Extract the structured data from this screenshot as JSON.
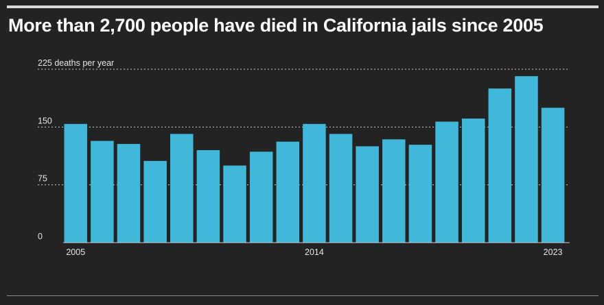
{
  "title": "More than 2,700 people have died in California jails since 2005",
  "colors": {
    "background": "#232323",
    "bar": "#41b8d9",
    "gridline": "#cfcfcf",
    "text": "#ffffff"
  },
  "chart_data": {
    "type": "bar",
    "title": "More than 2,700 people have died in California jails since 2005",
    "xlabel": "",
    "ylabel": "",
    "unit_label": "225 deaths per year",
    "categories": [
      "2005",
      "2006",
      "2007",
      "2008",
      "2009",
      "2010",
      "2011",
      "2012",
      "2013",
      "2014",
      "2015",
      "2016",
      "2017",
      "2018",
      "2019",
      "2020",
      "2021",
      "2022",
      "2023"
    ],
    "values": [
      154,
      132,
      128,
      106,
      141,
      120,
      100,
      118,
      131,
      154,
      141,
      125,
      134,
      127,
      157,
      161,
      200,
      216,
      175
    ],
    "ylim": [
      0,
      225
    ],
    "yticks": [
      0,
      75,
      150,
      225
    ],
    "ytick_labels": [
      "0",
      "75",
      "150",
      "225 deaths per year"
    ],
    "xtick_labels": [
      "2005",
      "2014",
      "2023"
    ],
    "grid": true
  }
}
